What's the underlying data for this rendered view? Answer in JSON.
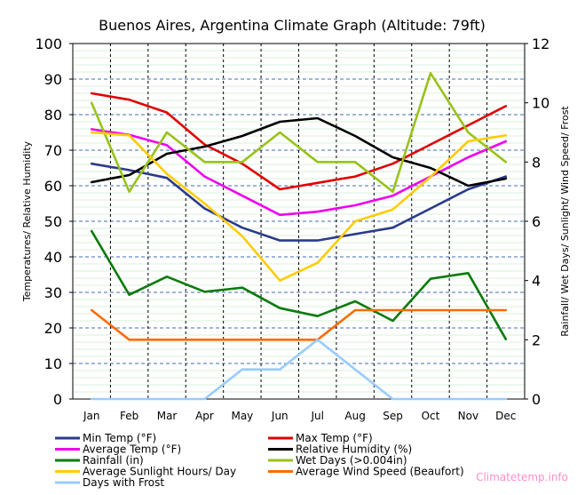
{
  "chart_data": {
    "type": "line",
    "title": "Buenos Aires, Argentina Climate Graph (Altitude: 79ft)",
    "ylabel_left": "Temperatures/ Relative Humidity",
    "ylabel_right": "Rainfall/ Wet Days/ Sunlight/ Wind Speed/ Frost",
    "categories": [
      "Jan",
      "Feb",
      "Mar",
      "Apr",
      "May",
      "Jun",
      "Jul",
      "Aug",
      "Sep",
      "Oct",
      "Nov",
      "Dec"
    ],
    "ylim_left": [
      0,
      100
    ],
    "ylim_right": [
      0,
      12
    ],
    "yticks_left": [
      "0",
      "10",
      "20",
      "30",
      "40",
      "50",
      "60",
      "70",
      "80",
      "90",
      "100"
    ],
    "yticks_right": [
      "0",
      "2",
      "4",
      "6",
      "8",
      "10",
      "12"
    ],
    "grid": true,
    "legend_position": "bottom",
    "series": [
      {
        "name": "Min Temp (°F)",
        "axis": "left",
        "color": "#2b3a8c",
        "values": [
          66.2,
          64.4,
          62.2,
          53.6,
          48.2,
          44.6,
          44.6,
          46.4,
          48.2,
          53.6,
          59.0,
          62.6
        ]
      },
      {
        "name": "Max Temp (°F)",
        "axis": "left",
        "color": "#e00000",
        "values": [
          86.0,
          84.2,
          80.6,
          71.6,
          66.2,
          59.0,
          60.8,
          62.6,
          66.2,
          71.6,
          77.0,
          82.4
        ]
      },
      {
        "name": "Average Temp (°F)",
        "axis": "left",
        "color": "#ee00ee",
        "values": [
          75.9,
          74.3,
          71.4,
          62.6,
          57.2,
          51.8,
          52.7,
          54.5,
          57.2,
          62.6,
          68.0,
          72.5
        ]
      },
      {
        "name": "Relative Humidity (%)",
        "axis": "left",
        "color": "#000000",
        "values": [
          61,
          63,
          69,
          71,
          74,
          78,
          79,
          74,
          68,
          65,
          60,
          62
        ]
      },
      {
        "name": "Rainfall (in)",
        "axis": "right",
        "color": "#0b7a0b",
        "values": [
          5.67,
          3.52,
          4.13,
          3.62,
          3.76,
          3.07,
          2.8,
          3.3,
          2.64,
          4.06,
          4.25,
          2.02
        ]
      },
      {
        "name": "Wet Days (>0.004in)",
        "axis": "right",
        "color": "#99c21a",
        "values": [
          10,
          7,
          9,
          8,
          8,
          9,
          8,
          8,
          7,
          11,
          9,
          8
        ]
      },
      {
        "name": "Average Sunlight Hours/ Day",
        "axis": "right",
        "color": "#ffcc00",
        "values": [
          9.0,
          8.9,
          7.6,
          6.6,
          5.5,
          4.0,
          4.6,
          6.0,
          6.4,
          7.5,
          8.7,
          8.9
        ]
      },
      {
        "name": "Average Wind Speed (Beaufort)",
        "axis": "right",
        "color": "#ff6a00",
        "values": [
          3,
          2,
          2,
          2,
          2,
          2,
          2,
          3,
          3,
          3,
          3,
          3
        ]
      },
      {
        "name": "Days with Frost",
        "axis": "right",
        "color": "#99ccff",
        "values": [
          0,
          0,
          0,
          0,
          1,
          1,
          2,
          1,
          0,
          0,
          0,
          0
        ]
      }
    ],
    "watermark": "Climatetemp.info"
  }
}
